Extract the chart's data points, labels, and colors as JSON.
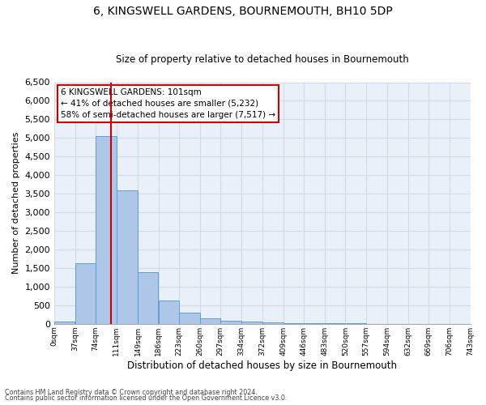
{
  "title": "6, KINGSWELL GARDENS, BOURNEMOUTH, BH10 5DP",
  "subtitle": "Size of property relative to detached houses in Bournemouth",
  "xlabel": "Distribution of detached houses by size in Bournemouth",
  "ylabel": "Number of detached properties",
  "bar_edges": [
    0,
    37,
    74,
    111,
    149,
    186,
    223,
    260,
    297,
    334,
    372,
    409,
    446,
    483,
    520,
    557,
    594,
    632,
    669,
    706,
    743
  ],
  "bar_heights": [
    65,
    1640,
    5060,
    3600,
    1400,
    620,
    300,
    145,
    90,
    50,
    35,
    25,
    15,
    10,
    8,
    5,
    3,
    2,
    1,
    1
  ],
  "bar_color": "#aec6e8",
  "bar_edge_color": "#5a9fd4",
  "vline_x": 101,
  "vline_color": "#cc0000",
  "annotation_text": "6 KINGSWELL GARDENS: 101sqm\n← 41% of detached houses are smaller (5,232)\n58% of semi-detached houses are larger (7,517) →",
  "annotation_box_color": "#ffffff",
  "annotation_box_edge_color": "#cc0000",
  "ylim": [
    0,
    6500
  ],
  "yticks": [
    0,
    500,
    1000,
    1500,
    2000,
    2500,
    3000,
    3500,
    4000,
    4500,
    5000,
    5500,
    6000,
    6500
  ],
  "grid_color": "#d0dce8",
  "background_color": "#eaf0f8",
  "fig_background_color": "#ffffff",
  "footer_line1": "Contains HM Land Registry data © Crown copyright and database right 2024.",
  "footer_line2": "Contains public sector information licensed under the Open Government Licence v3.0.",
  "tick_labels": [
    "0sqm",
    "37sqm",
    "74sqm",
    "111sqm",
    "149sqm",
    "186sqm",
    "223sqm",
    "260sqm",
    "297sqm",
    "334sqm",
    "372sqm",
    "409sqm",
    "446sqm",
    "483sqm",
    "520sqm",
    "557sqm",
    "594sqm",
    "632sqm",
    "669sqm",
    "706sqm",
    "743sqm"
  ]
}
